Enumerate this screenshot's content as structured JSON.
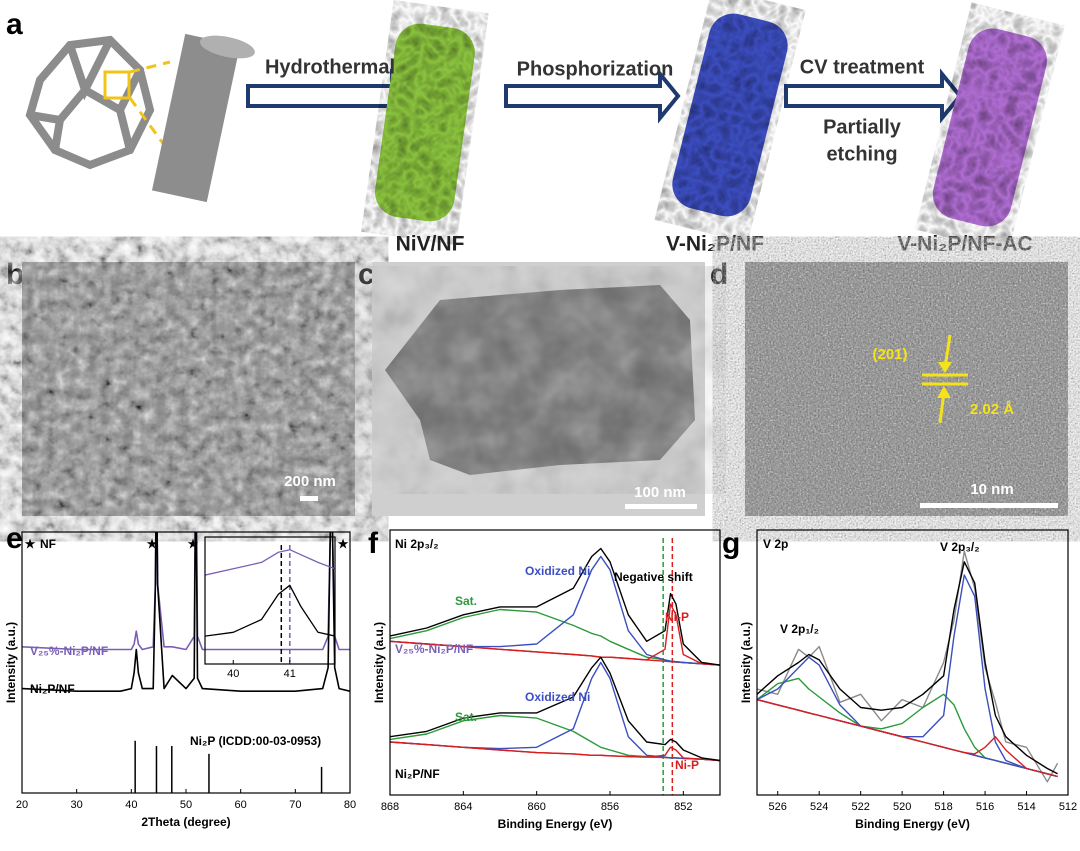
{
  "a": {
    "label": "a",
    "steps": [
      "Hydrothermal",
      "Phosphorization",
      "CV treatment"
    ],
    "note_lines": [
      "Partially",
      "etching"
    ],
    "products": [
      "NiV/NF",
      "V-Ni₂P/NF",
      "V-Ni₂P/NF-AC"
    ]
  },
  "b": {
    "label": "b",
    "scale_bar": "200 nm"
  },
  "c": {
    "label": "c",
    "scale_bar": "100 nm"
  },
  "d": {
    "label": "d",
    "scale_bar": "10 nm",
    "plane": "(201)",
    "spacing": "2.02 Å"
  },
  "e": {
    "label": "e",
    "type": "line",
    "xlabel": "2Theta (degree)",
    "ylabel": "Intensity (a.u.)",
    "nf_label": "NF",
    "xlim": [
      20,
      80
    ],
    "xticks": [
      20,
      30,
      40,
      50,
      60,
      70,
      80
    ],
    "ylim": [
      0,
      100
    ],
    "x": [
      20,
      30,
      38,
      40,
      40.5,
      40.9,
      41.3,
      42,
      44,
      44.4,
      44.6,
      44.8,
      46,
      47.5,
      50,
      51.5,
      51.8,
      52.1,
      53,
      60,
      70,
      75,
      76,
      76.4,
      76.6,
      76.8,
      77.2,
      78,
      80
    ],
    "series": [
      {
        "name": "V₂₅%-Ni₂P/NF",
        "color": "#7a5fb5",
        "values": [
          56,
          55,
          55,
          55,
          57,
          62,
          57,
          55,
          56,
          80,
          130,
          80,
          56,
          56,
          55,
          60,
          130,
          60,
          55,
          55,
          55,
          55,
          60,
          100,
          130,
          100,
          60,
          55,
          55
        ]
      },
      {
        "name": "Ni₂P/NF",
        "color": "#000000",
        "values": [
          40,
          39,
          39,
          40,
          46,
          55,
          46,
          40,
          40,
          80,
          130,
          80,
          40,
          45,
          40,
          44,
          130,
          44,
          40,
          39,
          39,
          40,
          48,
          100,
          130,
          100,
          48,
          40,
          39
        ]
      }
    ],
    "reference": {
      "name": "Ni₂P (ICDD:00-03-0953)",
      "color": "#000000",
      "x": [
        40.7,
        44.6,
        47.4,
        54.2,
        74.8
      ],
      "values": [
        20,
        18,
        18,
        15,
        10
      ]
    },
    "inset": {
      "xlim": [
        39.5,
        41.8
      ],
      "xticks": [
        40,
        41
      ],
      "ylim": [
        0,
        100
      ],
      "x": [
        39.5,
        40,
        40.5,
        40.8,
        41,
        41.2,
        41.5,
        41.8
      ],
      "series": [
        {
          "color": "#7a5fb5",
          "values": [
            70,
            75,
            80,
            88,
            90,
            86,
            80,
            75
          ]
        },
        {
          "color": "#000000",
          "values": [
            22,
            25,
            35,
            55,
            62,
            45,
            25,
            22
          ]
        }
      ],
      "markers": [
        {
          "x": 40.85,
          "color": "#000000"
        },
        {
          "x": 41.0,
          "color": "#7a5fb5"
        }
      ]
    }
  },
  "f": {
    "label": "f",
    "type": "line",
    "xlabel": "Binding Energy (eV)",
    "ylabel": "Intensity (a.u.)",
    "xlim": [
      868,
      850
    ],
    "xticks": [
      868,
      864,
      860,
      856,
      852
    ],
    "ylim": [
      0,
      100
    ],
    "x": [
      868,
      866,
      864,
      862,
      860,
      858,
      857,
      856.5,
      856,
      855,
      854,
      853,
      852.7,
      852.4,
      852,
      851,
      850
    ],
    "series": [
      {
        "color": "#d62020",
        "values": [
          58,
          57,
          56,
          55,
          54,
          53,
          52.5,
          52,
          52,
          51.5,
          51,
          50.5,
          50.3,
          50.1,
          50,
          49.5,
          49
        ]
      },
      {
        "color": "#2a9a3a",
        "values": [
          59,
          62,
          67,
          70,
          69,
          64,
          61,
          60,
          58,
          55,
          52,
          51,
          50.5,
          50.3,
          50,
          49.5,
          49
        ]
      },
      {
        "color": "#3b4fc0",
        "values": [
          58,
          57,
          56,
          56,
          57,
          68,
          85,
          90,
          85,
          62,
          53,
          51,
          50.5,
          50.3,
          50,
          49.5,
          49
        ]
      },
      {
        "color": "#d62020",
        "values": [
          58,
          57,
          56,
          55,
          54,
          53,
          52.5,
          52,
          52,
          51.5,
          51,
          55,
          72,
          68,
          53,
          49.5,
          49
        ]
      },
      {
        "color": "#000000",
        "values": [
          60,
          63,
          68,
          71,
          71,
          78,
          90,
          93,
          88,
          68,
          58,
          62,
          76,
          72,
          57,
          50,
          49
        ]
      },
      {
        "color": "#d62020",
        "values": [
          20,
          19,
          18,
          17,
          16,
          15.5,
          15,
          15,
          14.8,
          14.5,
          14.3,
          14.1,
          14,
          14,
          13.8,
          13.5,
          13
        ]
      },
      {
        "color": "#2a9a3a",
        "values": [
          21,
          23,
          28,
          30,
          29,
          24,
          20,
          18,
          17,
          15,
          14.5,
          14.2,
          14,
          14,
          13.8,
          13.5,
          13
        ]
      },
      {
        "color": "#3b4fc0",
        "values": [
          20,
          19,
          18,
          17.5,
          18,
          25,
          44,
          50,
          44,
          22,
          15,
          14.3,
          14,
          14,
          13.8,
          13.5,
          13
        ]
      },
      {
        "color": "#d62020",
        "values": [
          20,
          19,
          18,
          17,
          16,
          15.5,
          15,
          15,
          14.8,
          14.5,
          14.3,
          15,
          18,
          17,
          14,
          13.5,
          13
        ]
      },
      {
        "color": "#000000",
        "values": [
          22,
          24,
          29,
          31,
          31,
          37,
          48,
          52,
          46,
          28,
          20,
          19,
          21,
          20,
          17,
          14,
          13
        ]
      }
    ],
    "markers": [
      {
        "x": 853.1,
        "color": "#2a9a3a"
      },
      {
        "x": 852.6,
        "color": "#d62020"
      }
    ],
    "annotations": [
      "Ni 2p₃/₂",
      "Oxidized Ni",
      "Sat.",
      "Negative shift",
      "Ni-P",
      "V₂₅%-Ni₂P/NF",
      "Oxidized Ni",
      "Sat.",
      "Ni-P",
      "Ni₂P/NF"
    ]
  },
  "g": {
    "label": "g",
    "type": "line",
    "xlabel": "Binding Energy (eV)",
    "ylabel": "Intensity (a.u.)",
    "xlim": [
      527,
      512
    ],
    "xticks": [
      526,
      524,
      522,
      520,
      518,
      516,
      514,
      512
    ],
    "ylim": [
      0,
      100
    ],
    "x": [
      527,
      526,
      525,
      524.5,
      524,
      523,
      522,
      521,
      520,
      519,
      518,
      517.5,
      517,
      516.5,
      516,
      515.5,
      515,
      514,
      513,
      512.5
    ],
    "series": [
      {
        "color": "#8a8a8a",
        "values": [
          40,
          38,
          55,
          52,
          56,
          35,
          38,
          28,
          36,
          33,
          50,
          66,
          92,
          78,
          48,
          35,
          20,
          18,
          5,
          12
        ]
      },
      {
        "color": "#d62020",
        "values": [
          36,
          34,
          32,
          31,
          30,
          28,
          26,
          24,
          22,
          20,
          18,
          17,
          16,
          15,
          14,
          13,
          12,
          10,
          8,
          7
        ]
      },
      {
        "color": "#2a9a3a",
        "values": [
          36,
          42,
          44,
          40,
          37,
          31,
          26,
          25,
          27,
          33,
          38,
          34,
          25,
          18,
          14,
          13,
          12,
          10,
          8,
          7
        ]
      },
      {
        "color": "#3b4fc0",
        "values": [
          36,
          40,
          48,
          52,
          49,
          34,
          26,
          24,
          22,
          20,
          18,
          17,
          16,
          15,
          14,
          13,
          12,
          10,
          8,
          7
        ]
      },
      {
        "color": "#3b4fc0",
        "values": [
          36,
          34,
          32,
          31,
          30,
          28,
          26,
          24,
          22,
          22,
          30,
          60,
          83,
          75,
          40,
          20,
          13,
          10,
          8,
          7
        ]
      },
      {
        "color": "#d62020",
        "values": [
          36,
          34,
          32,
          31,
          30,
          28,
          26,
          24,
          22,
          20,
          18,
          17,
          16,
          15.5,
          18,
          22,
          17,
          10,
          8,
          7
        ]
      },
      {
        "color": "#000000",
        "values": [
          38,
          45,
          50,
          53,
          51,
          40,
          33,
          32,
          33,
          38,
          45,
          70,
          88,
          80,
          50,
          30,
          22,
          15,
          10,
          8
        ]
      }
    ],
    "annotations": [
      "V 2p",
      "V 2p₃/₂",
      "V 2p₁/₂"
    ]
  }
}
